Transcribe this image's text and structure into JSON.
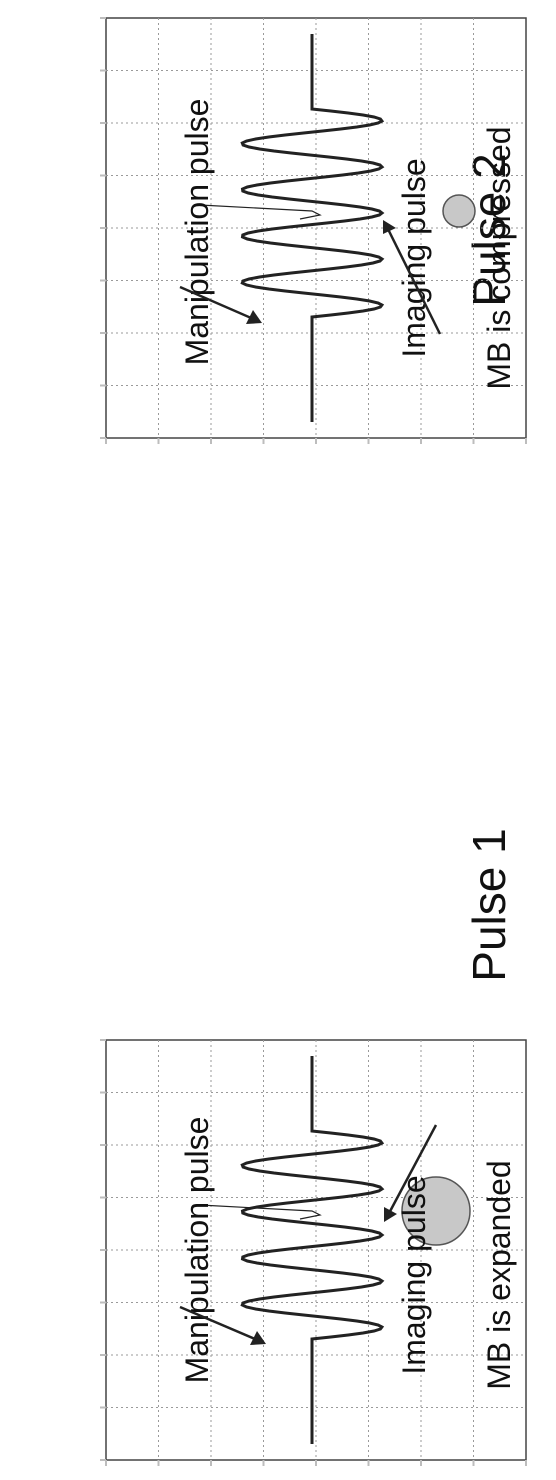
{
  "figure": {
    "panels": [
      {
        "id": "pulse1",
        "title": "Pulse 1",
        "manipulation_label": "Manipulation  pulse",
        "imaging_label": "Imaging pulse",
        "mb_label": "MB is expanded",
        "bubble": "expanded"
      },
      {
        "id": "pulse2",
        "title": "Pulse 2",
        "manipulation_label": "Manipulation  pulse",
        "imaging_label": "Imaging pulse",
        "mb_label": "MB is compressed",
        "bubble": "compressed"
      }
    ]
  },
  "colors": {
    "background": "#ffffff",
    "grid": "#9a9a9a",
    "curve": "#222222",
    "text": "#111111",
    "bubble_fill": "#c8c8c8",
    "bubble_stroke": "#555555"
  }
}
